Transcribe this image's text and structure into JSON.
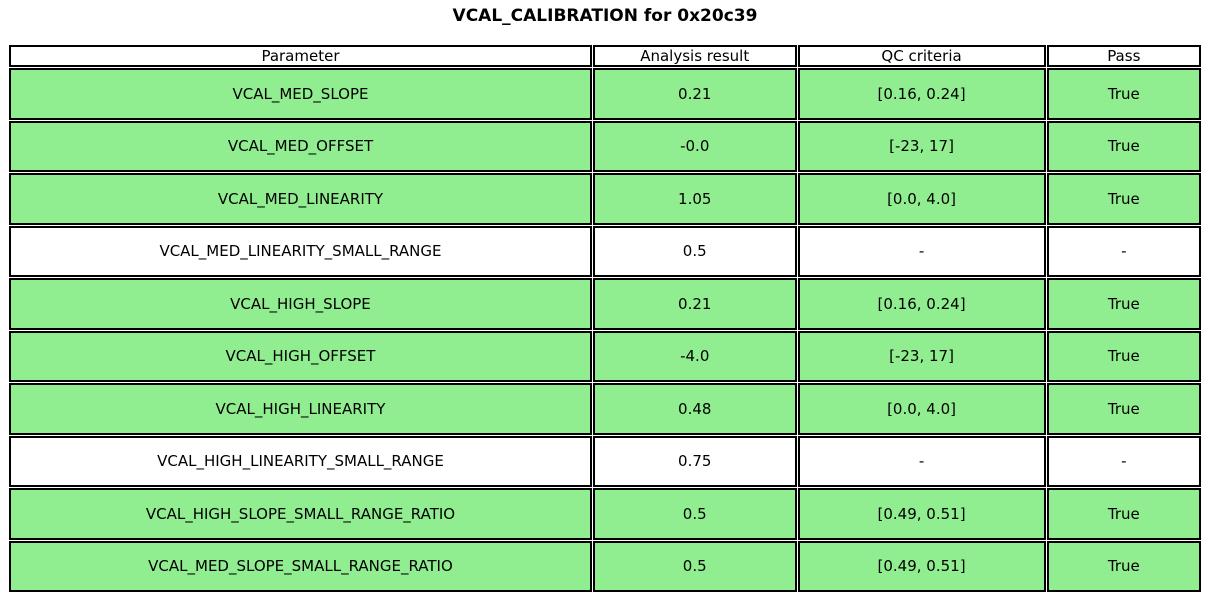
{
  "title": "VCAL_CALIBRATION for 0x20c39",
  "colors": {
    "pass_row_green": "#90EE90",
    "border": "#000000",
    "text": "#000000",
    "background": "#FFFFFF"
  },
  "chart_data": {
    "type": "table",
    "title": "VCAL_CALIBRATION for 0x20c39",
    "columns": [
      "Parameter",
      "Analysis result",
      "QC criteria",
      "Pass"
    ],
    "rows": [
      {
        "parameter": "VCAL_MED_SLOPE",
        "analysis_result": "0.21",
        "qc_criteria": "[0.16, 0.24]",
        "pass": "True",
        "highlight": true
      },
      {
        "parameter": "VCAL_MED_OFFSET",
        "analysis_result": "-0.0",
        "qc_criteria": "[-23, 17]",
        "pass": "True",
        "highlight": true
      },
      {
        "parameter": "VCAL_MED_LINEARITY",
        "analysis_result": "1.05",
        "qc_criteria": "[0.0, 4.0]",
        "pass": "True",
        "highlight": true
      },
      {
        "parameter": "VCAL_MED_LINEARITY_SMALL_RANGE",
        "analysis_result": "0.5",
        "qc_criteria": "-",
        "pass": "-",
        "highlight": false
      },
      {
        "parameter": "VCAL_HIGH_SLOPE",
        "analysis_result": "0.21",
        "qc_criteria": "[0.16, 0.24]",
        "pass": "True",
        "highlight": true
      },
      {
        "parameter": "VCAL_HIGH_OFFSET",
        "analysis_result": "-4.0",
        "qc_criteria": "[-23, 17]",
        "pass": "True",
        "highlight": true
      },
      {
        "parameter": "VCAL_HIGH_LINEARITY",
        "analysis_result": "0.48",
        "qc_criteria": "[0.0, 4.0]",
        "pass": "True",
        "highlight": true
      },
      {
        "parameter": "VCAL_HIGH_LINEARITY_SMALL_RANGE",
        "analysis_result": "0.75",
        "qc_criteria": "-",
        "pass": "-",
        "highlight": false
      },
      {
        "parameter": "VCAL_HIGH_SLOPE_SMALL_RANGE_RATIO",
        "analysis_result": "0.5",
        "qc_criteria": "[0.49, 0.51]",
        "pass": "True",
        "highlight": true
      },
      {
        "parameter": "VCAL_MED_SLOPE_SMALL_RANGE_RATIO",
        "analysis_result": "0.5",
        "qc_criteria": "[0.49, 0.51]",
        "pass": "True",
        "highlight": true
      }
    ],
    "layout": {
      "legend": "none",
      "grid": "table-borders",
      "highlight_meaning": "row passes QC",
      "column_width_pct": [
        50,
        16.8,
        20.7,
        12.5
      ]
    }
  }
}
